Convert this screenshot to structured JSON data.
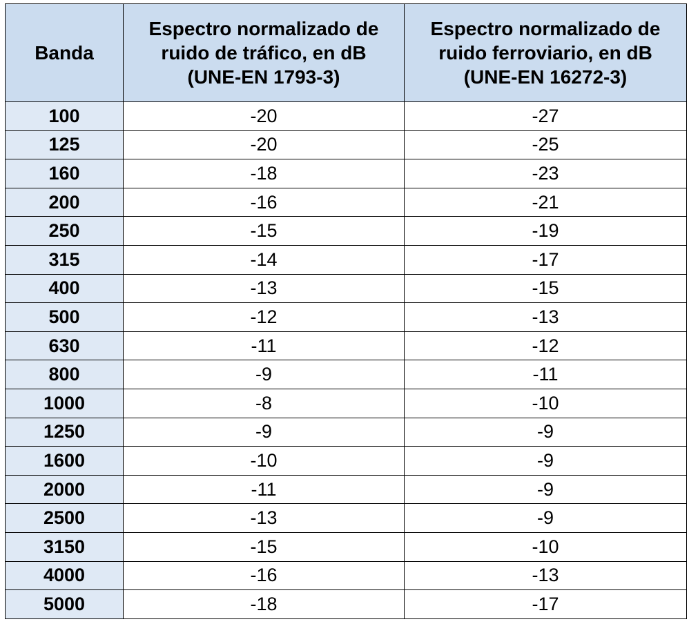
{
  "table": {
    "headers": {
      "band": "Banda",
      "traffic": [
        "Espectro normalizado de",
        "ruido de tráfico, en dB",
        "(UNE-EN 1793-3)"
      ],
      "rail": [
        "Espectro normalizado de",
        "ruido ferroviario, en dB",
        "(UNE-EN 16272-3)"
      ]
    },
    "rows": [
      {
        "band": "100",
        "traffic": "-20",
        "rail": "-27"
      },
      {
        "band": "125",
        "traffic": "-20",
        "rail": "-25"
      },
      {
        "band": "160",
        "traffic": "-18",
        "rail": "-23"
      },
      {
        "band": "200",
        "traffic": "-16",
        "rail": "-21"
      },
      {
        "band": "250",
        "traffic": "-15",
        "rail": "-19"
      },
      {
        "band": "315",
        "traffic": "-14",
        "rail": "-17"
      },
      {
        "band": "400",
        "traffic": "-13",
        "rail": "-15"
      },
      {
        "band": "500",
        "traffic": "-12",
        "rail": "-13"
      },
      {
        "band": "630",
        "traffic": "-11",
        "rail": "-12"
      },
      {
        "band": "800",
        "traffic": "-9",
        "rail": "-11"
      },
      {
        "band": "1000",
        "traffic": "-8",
        "rail": "-10"
      },
      {
        "band": "1250",
        "traffic": "-9",
        "rail": "-9"
      },
      {
        "band": "1600",
        "traffic": "-10",
        "rail": "-9"
      },
      {
        "band": "2000",
        "traffic": "-11",
        "rail": "-9"
      },
      {
        "band": "2500",
        "traffic": "-13",
        "rail": "-9"
      },
      {
        "band": "3150",
        "traffic": "-15",
        "rail": "-10"
      },
      {
        "band": "4000",
        "traffic": "-16",
        "rail": "-13"
      },
      {
        "band": "5000",
        "traffic": "-18",
        "rail": "-17"
      }
    ]
  },
  "colors": {
    "header_bg": "#cbdcef",
    "first_col_bg": "#dfe9f5",
    "border": "#000000"
  }
}
